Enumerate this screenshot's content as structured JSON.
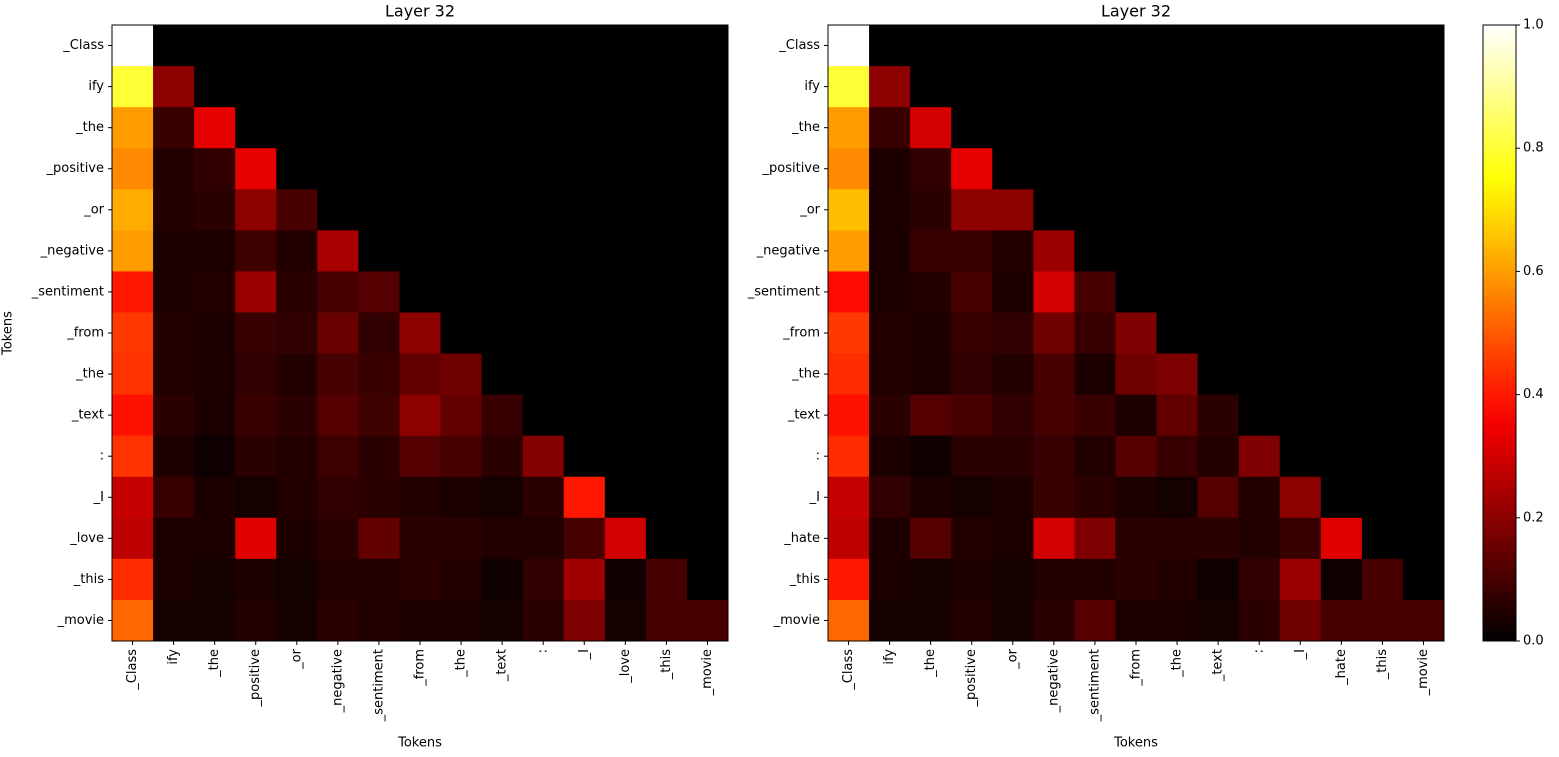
{
  "chart_data": [
    {
      "type": "heatmap",
      "title": "Layer 32",
      "xlabel": "Tokens",
      "ylabel": "Tokens",
      "colormap": "hot",
      "vlim": [
        0,
        1
      ],
      "x_categories": [
        "_Class",
        "ify",
        "_the",
        "_positive",
        "_or",
        "_negative",
        "_sentiment",
        "_from",
        "_the",
        "_text",
        ":",
        "_I",
        "_love",
        "_this",
        "_movie"
      ],
      "y_categories": [
        "_Class",
        "ify",
        "_the",
        "_positive",
        "_or",
        "_negative",
        "_sentiment",
        "_from",
        "_the",
        "_text",
        ":",
        "_I",
        "_love",
        "_this",
        "_movie"
      ],
      "values": [
        [
          1.0,
          0,
          0,
          0,
          0,
          0,
          0,
          0,
          0,
          0,
          0,
          0,
          0,
          0,
          0
        ],
        [
          0.8,
          0.2,
          0,
          0,
          0,
          0,
          0,
          0,
          0,
          0,
          0,
          0,
          0,
          0,
          0
        ],
        [
          0.6,
          0.08,
          0.33,
          0,
          0,
          0,
          0,
          0,
          0,
          0,
          0,
          0,
          0,
          0,
          0
        ],
        [
          0.57,
          0.05,
          0.07,
          0.33,
          0,
          0,
          0,
          0,
          0,
          0,
          0,
          0,
          0,
          0,
          0
        ],
        [
          0.62,
          0.05,
          0.06,
          0.2,
          0.1,
          0,
          0,
          0,
          0,
          0,
          0,
          0,
          0,
          0,
          0
        ],
        [
          0.6,
          0.04,
          0.04,
          0.09,
          0.05,
          0.24,
          0,
          0,
          0,
          0,
          0,
          0,
          0,
          0,
          0
        ],
        [
          0.4,
          0.04,
          0.05,
          0.22,
          0.06,
          0.1,
          0.12,
          0,
          0,
          0,
          0,
          0,
          0,
          0,
          0
        ],
        [
          0.45,
          0.05,
          0.04,
          0.08,
          0.07,
          0.15,
          0.07,
          0.2,
          0,
          0,
          0,
          0,
          0,
          0,
          0
        ],
        [
          0.44,
          0.05,
          0.04,
          0.07,
          0.05,
          0.1,
          0.08,
          0.14,
          0.16,
          0,
          0,
          0,
          0,
          0,
          0
        ],
        [
          0.39,
          0.06,
          0.04,
          0.08,
          0.06,
          0.12,
          0.09,
          0.2,
          0.14,
          0.08,
          0,
          0,
          0,
          0,
          0
        ],
        [
          0.44,
          0.04,
          0.02,
          0.06,
          0.05,
          0.09,
          0.06,
          0.12,
          0.1,
          0.06,
          0.19,
          0,
          0,
          0,
          0
        ],
        [
          0.28,
          0.08,
          0.04,
          0.03,
          0.05,
          0.07,
          0.06,
          0.05,
          0.04,
          0.03,
          0.06,
          0.4,
          0,
          0,
          0
        ],
        [
          0.27,
          0.04,
          0.04,
          0.32,
          0.04,
          0.06,
          0.14,
          0.06,
          0.06,
          0.05,
          0.05,
          0.1,
          0.3,
          0,
          0
        ],
        [
          0.43,
          0.04,
          0.03,
          0.04,
          0.03,
          0.05,
          0.05,
          0.06,
          0.05,
          0.02,
          0.07,
          0.23,
          0.02,
          0.1,
          0
        ],
        [
          0.52,
          0.03,
          0.03,
          0.05,
          0.03,
          0.06,
          0.05,
          0.04,
          0.04,
          0.03,
          0.06,
          0.18,
          0.03,
          0.1,
          0.1
        ]
      ]
    },
    {
      "type": "heatmap",
      "title": "Layer 32",
      "xlabel": "Tokens",
      "colormap": "hot",
      "vlim": [
        0,
        1
      ],
      "x_categories": [
        "_Class",
        "ify",
        "_the",
        "_positive",
        "_or",
        "_negative",
        "_sentiment",
        "_from",
        "_the",
        "_text",
        ":",
        "_I",
        "_hate",
        "_this",
        "_movie"
      ],
      "y_categories": [
        "_Class",
        "ify",
        "_the",
        "_positive",
        "_or",
        "_negative",
        "_sentiment",
        "_from",
        "_the",
        "_text",
        ":",
        "_I",
        "_hate",
        "_this",
        "_movie"
      ],
      "values": [
        [
          1.0,
          0,
          0,
          0,
          0,
          0,
          0,
          0,
          0,
          0,
          0,
          0,
          0,
          0,
          0
        ],
        [
          0.8,
          0.2,
          0,
          0,
          0,
          0,
          0,
          0,
          0,
          0,
          0,
          0,
          0,
          0,
          0
        ],
        [
          0.6,
          0.08,
          0.3,
          0,
          0,
          0,
          0,
          0,
          0,
          0,
          0,
          0,
          0,
          0,
          0
        ],
        [
          0.57,
          0.04,
          0.07,
          0.33,
          0,
          0,
          0,
          0,
          0,
          0,
          0,
          0,
          0,
          0,
          0
        ],
        [
          0.65,
          0.04,
          0.06,
          0.2,
          0.2,
          0,
          0,
          0,
          0,
          0,
          0,
          0,
          0,
          0,
          0
        ],
        [
          0.6,
          0.04,
          0.08,
          0.08,
          0.05,
          0.22,
          0,
          0,
          0,
          0,
          0,
          0,
          0,
          0,
          0
        ],
        [
          0.38,
          0.04,
          0.05,
          0.1,
          0.04,
          0.3,
          0.1,
          0,
          0,
          0,
          0,
          0,
          0,
          0,
          0
        ],
        [
          0.45,
          0.05,
          0.04,
          0.08,
          0.07,
          0.16,
          0.08,
          0.18,
          0,
          0,
          0,
          0,
          0,
          0,
          0
        ],
        [
          0.43,
          0.05,
          0.04,
          0.07,
          0.05,
          0.1,
          0.04,
          0.16,
          0.18,
          0,
          0,
          0,
          0,
          0,
          0
        ],
        [
          0.39,
          0.06,
          0.12,
          0.1,
          0.07,
          0.1,
          0.08,
          0.04,
          0.14,
          0.06,
          0,
          0,
          0,
          0,
          0
        ],
        [
          0.43,
          0.04,
          0.02,
          0.06,
          0.06,
          0.08,
          0.05,
          0.12,
          0.08,
          0.05,
          0.18,
          0,
          0,
          0,
          0
        ],
        [
          0.28,
          0.07,
          0.04,
          0.03,
          0.04,
          0.08,
          0.06,
          0.04,
          0.03,
          0.12,
          0.05,
          0.2,
          0,
          0,
          0
        ],
        [
          0.27,
          0.04,
          0.12,
          0.05,
          0.04,
          0.3,
          0.18,
          0.06,
          0.06,
          0.06,
          0.05,
          0.08,
          0.32,
          0,
          0
        ],
        [
          0.4,
          0.04,
          0.03,
          0.04,
          0.03,
          0.05,
          0.05,
          0.06,
          0.05,
          0.02,
          0.07,
          0.22,
          0.02,
          0.1,
          0
        ],
        [
          0.52,
          0.03,
          0.03,
          0.05,
          0.03,
          0.06,
          0.12,
          0.04,
          0.04,
          0.03,
          0.06,
          0.16,
          0.1,
          0.1,
          0.1
        ]
      ],
      "colorbar": {
        "lim": [
          0,
          1
        ],
        "ticks": [
          {
            "value": 0,
            "label": "0.0"
          },
          {
            "value": 0.2,
            "label": "0.2"
          },
          {
            "value": 0.4,
            "label": "0.4"
          },
          {
            "value": 0.6,
            "label": "0.6"
          },
          {
            "value": 0.8,
            "label": "0.8"
          },
          {
            "value": 1,
            "label": "1.0"
          }
        ]
      }
    }
  ]
}
